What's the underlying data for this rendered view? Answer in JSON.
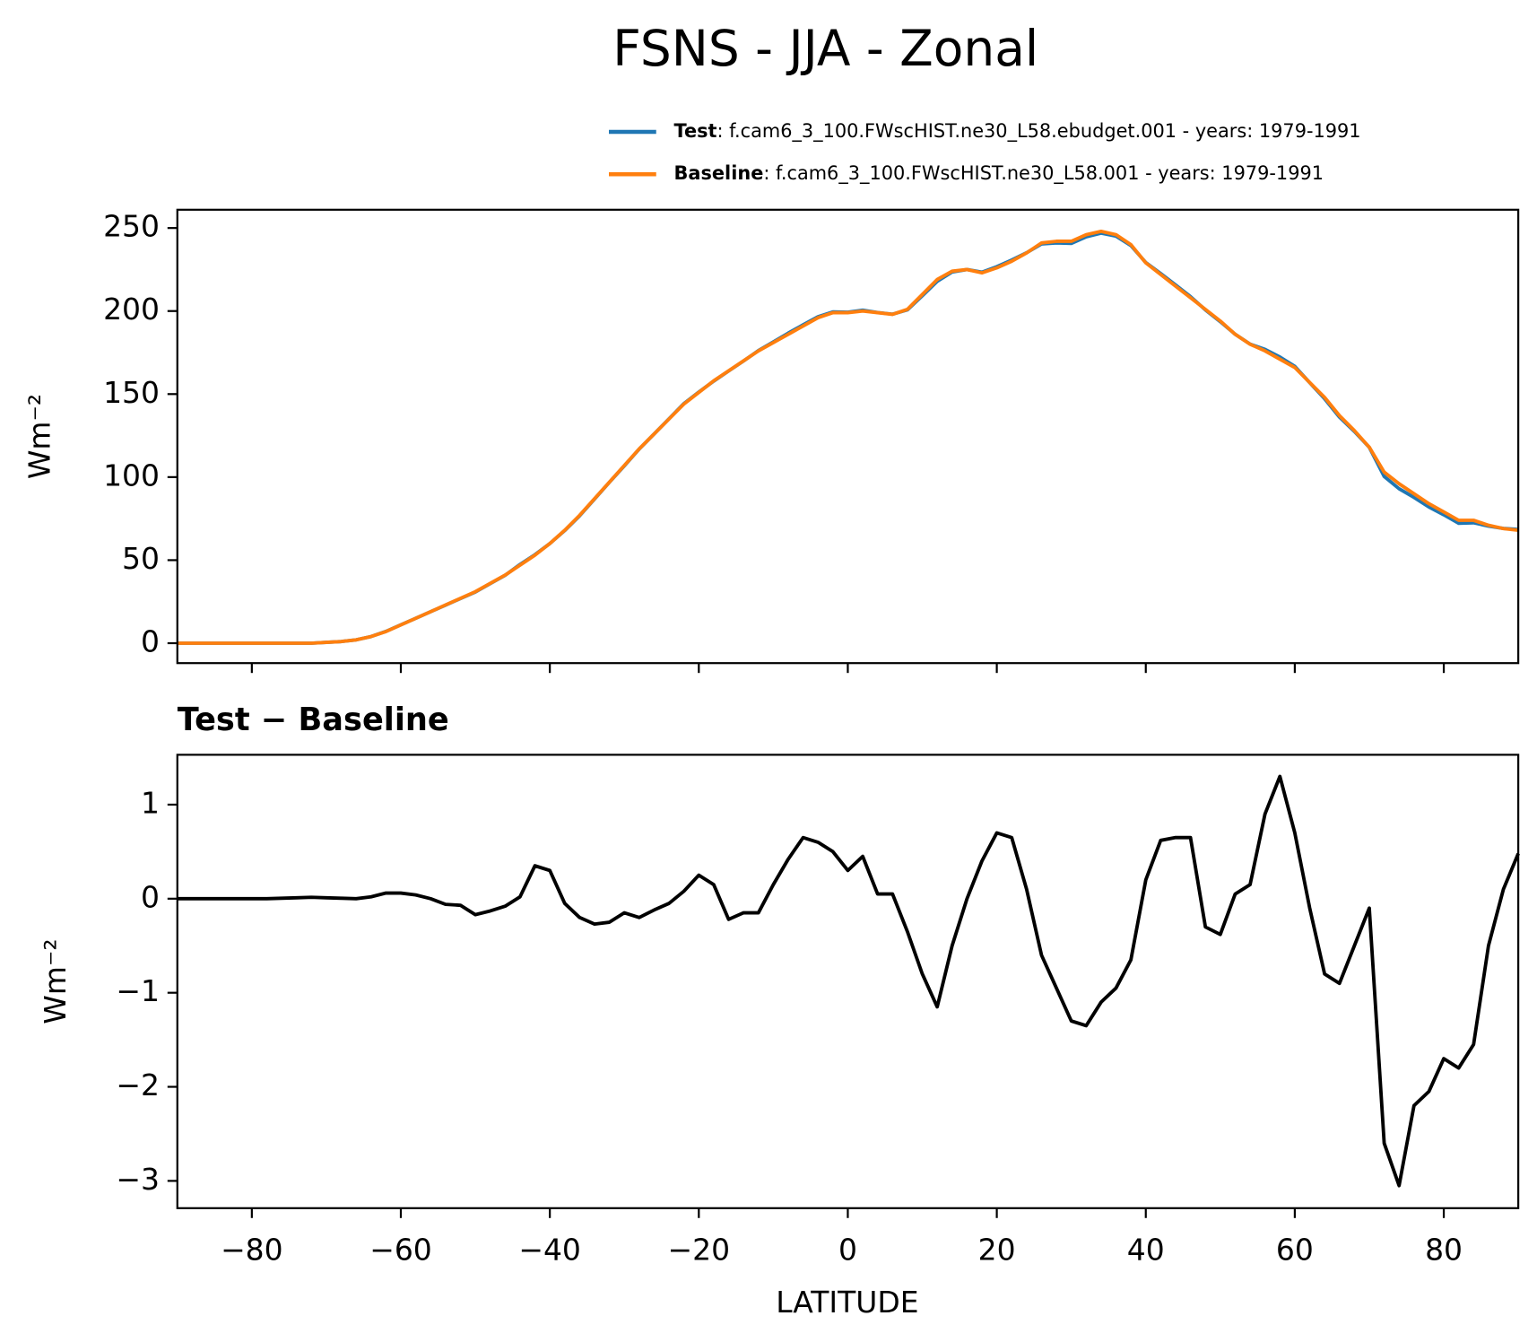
{
  "chart_data": [
    {
      "type": "line",
      "title": "FSNS - JJA - Zonal",
      "ylabel": "Wm⁻²",
      "x": [
        -90,
        -88,
        -86,
        -84,
        -82,
        -80,
        -78,
        -76,
        -74,
        -72,
        -70,
        -68,
        -66,
        -64,
        -62,
        -60,
        -58,
        -56,
        -54,
        -52,
        -50,
        -48,
        -46,
        -44,
        -42,
        -40,
        -38,
        -36,
        -34,
        -32,
        -30,
        -28,
        -26,
        -24,
        -22,
        -20,
        -18,
        -16,
        -14,
        -12,
        -10,
        -8,
        -6,
        -4,
        -2,
        0,
        2,
        4,
        6,
        8,
        10,
        12,
        14,
        16,
        18,
        20,
        22,
        24,
        26,
        28,
        30,
        32,
        34,
        36,
        38,
        40,
        42,
        44,
        46,
        48,
        50,
        52,
        54,
        56,
        58,
        60,
        62,
        64,
        66,
        68,
        70,
        72,
        74,
        76,
        78,
        80,
        82,
        84,
        86,
        88,
        90
      ],
      "series": [
        {
          "name": "Test",
          "legend_label": ": f.cam6_3_100.FWscHIST.ne30_L58.ebudget.001 - years: 1979-1991",
          "color": "#1f77b4",
          "values": [
            0,
            0,
            0,
            0,
            0,
            0,
            0,
            0,
            0,
            0,
            0.5,
            1,
            2,
            4,
            7.1,
            11.1,
            15,
            19,
            22.9,
            26.9,
            30.8,
            35.9,
            40.9,
            47.4,
            53.3,
            60,
            67.8,
            76.7,
            86.8,
            96.9,
            106.8,
            116.9,
            126,
            135.1,
            144.3,
            151.2,
            157.8,
            163.9,
            169.9,
            176.2,
            181.4,
            186.7,
            191.7,
            196.6,
            199.5,
            199.3,
            200.5,
            199.1,
            198.1,
            200.7,
            209.2,
            217.9,
            223.5,
            225,
            223.4,
            226.7,
            230.7,
            235.1,
            240.4,
            241,
            240.7,
            244.7,
            246.9,
            245.1,
            239.4,
            229.2,
            222.6,
            215.7,
            208.7,
            200.7,
            193.6,
            186,
            180.1,
            176.9,
            172.3,
            166.7,
            156.9,
            147.2,
            136.1,
            127.5,
            117.9,
            100.4,
            93,
            87.8,
            82,
            77.3,
            72.2,
            72.5,
            70.5,
            69.1,
            68.5
          ]
        },
        {
          "name": "Baseline",
          "legend_label": ": f.cam6_3_100.FWscHIST.ne30_L58.001 - years: 1979-1991",
          "color": "#ff7f0e",
          "values": [
            0,
            0,
            0,
            0,
            0,
            0,
            0,
            0,
            0,
            0,
            0.5,
            1,
            2,
            4,
            7,
            11,
            15,
            19,
            23,
            27,
            31,
            36,
            41,
            47,
            53,
            60,
            68,
            77,
            87,
            97,
            107,
            117,
            126,
            135,
            144,
            151,
            158,
            164,
            170,
            176,
            181,
            186,
            191,
            196,
            199,
            199,
            200,
            199,
            198,
            201,
            210,
            219,
            224,
            225,
            223,
            226,
            230,
            235,
            241,
            242,
            242,
            246,
            248,
            246,
            240,
            229,
            222,
            215,
            208,
            201,
            194,
            186,
            180,
            176,
            171,
            166,
            157,
            148,
            137,
            128,
            118,
            103,
            96,
            90,
            84,
            79,
            74,
            74,
            71,
            69,
            68
          ]
        }
      ],
      "xlim": [
        -90,
        90
      ],
      "ylim": [
        -12,
        261
      ],
      "xticks": [
        {
          "value": -80,
          "label": "−80"
        },
        {
          "value": -60,
          "label": "−60"
        },
        {
          "value": -40,
          "label": "−40"
        },
        {
          "value": -20,
          "label": "−20"
        },
        0,
        20,
        40,
        60,
        80
      ],
      "yticks": [
        0,
        50,
        100,
        150,
        200,
        250
      ]
    },
    {
      "type": "line",
      "title": "Test − Baseline",
      "ylabel": "Wm⁻²",
      "xlabel": "LATITUDE",
      "x": [
        -90,
        -88,
        -86,
        -84,
        -82,
        -80,
        -78,
        -76,
        -74,
        -72,
        -70,
        -68,
        -66,
        -64,
        -62,
        -60,
        -58,
        -56,
        -54,
        -52,
        -50,
        -48,
        -46,
        -44,
        -42,
        -40,
        -38,
        -36,
        -34,
        -32,
        -30,
        -28,
        -26,
        -24,
        -22,
        -20,
        -18,
        -16,
        -14,
        -12,
        -10,
        -8,
        -6,
        -4,
        -2,
        0,
        2,
        4,
        6,
        8,
        10,
        12,
        14,
        16,
        18,
        20,
        22,
        24,
        26,
        28,
        30,
        32,
        34,
        36,
        38,
        40,
        42,
        44,
        46,
        48,
        50,
        52,
        54,
        56,
        58,
        60,
        62,
        64,
        66,
        68,
        70,
        72,
        74,
        76,
        78,
        80,
        82,
        84,
        86,
        88,
        90
      ],
      "series": [
        {
          "color": "#000000",
          "values": [
            0,
            0,
            0,
            0,
            0,
            0,
            0,
            0.005,
            0.01,
            0.015,
            0.01,
            0.005,
            0,
            0.02,
            0.06,
            0.06,
            0.04,
            0,
            -0.06,
            -0.07,
            -0.17,
            -0.13,
            -0.08,
            0.02,
            0.35,
            0.3,
            -0.05,
            -0.2,
            -0.27,
            -0.25,
            -0.15,
            -0.2,
            -0.12,
            -0.05,
            0.08,
            0.25,
            0.15,
            -0.22,
            -0.15,
            -0.15,
            0.15,
            0.42,
            0.65,
            0.6,
            0.5,
            0.3,
            0.45,
            0.05,
            0.05,
            -0.35,
            -0.8,
            -1.15,
            -0.5,
            0,
            0.4,
            0.7,
            0.65,
            0.1,
            -0.6,
            -0.95,
            -1.3,
            -1.35,
            -1.1,
            -0.95,
            -0.65,
            0.2,
            0.62,
            0.65,
            0.65,
            -0.3,
            -0.38,
            0.05,
            0.15,
            0.9,
            1.3,
            0.7,
            -0.1,
            -0.8,
            -0.9,
            -0.5,
            -0.1,
            -2.6,
            -3.05,
            -2.2,
            -2.05,
            -1.7,
            -1.8,
            -1.55,
            -0.5,
            0.1,
            0.48
          ]
        }
      ],
      "xlim": [
        -90,
        90
      ],
      "ylim": [
        -3.29,
        1.53
      ],
      "xticks": [
        {
          "value": -80,
          "label": "−80"
        },
        {
          "value": -60,
          "label": "−60"
        },
        {
          "value": -40,
          "label": "−40"
        },
        {
          "value": -20,
          "label": "−20"
        },
        0,
        20,
        40,
        60,
        80
      ],
      "yticks": [
        1,
        0,
        {
          "value": -1,
          "label": "−1"
        },
        {
          "value": -2,
          "label": "−2"
        },
        {
          "value": -3,
          "label": "−3"
        }
      ]
    }
  ]
}
